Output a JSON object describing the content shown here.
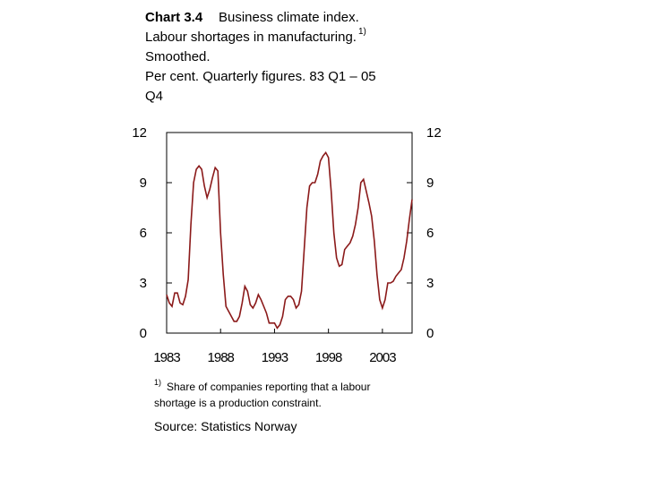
{
  "chart_data": {
    "type": "line",
    "title_bold": "Chart 3.4",
    "title": "Business climate index.",
    "subtitle_lines": [
      "Labour shortages in manufacturing.",
      "Smoothed.",
      "Per cent. Quarterly figures. 83 Q1 – 05",
      "Q4"
    ],
    "title_footnote_mark": "1)",
    "footnote_mark": "1)",
    "footnote_lines": [
      "Share of companies reporting that a labour",
      "shortage is a production constraint."
    ],
    "source": "Source: Statistics Norway",
    "x": [
      1983,
      1983.25,
      1983.5,
      1983.75,
      1984,
      1984.25,
      1984.5,
      1984.75,
      1985,
      1985.25,
      1985.5,
      1985.75,
      1986,
      1986.25,
      1986.5,
      1986.75,
      1987,
      1987.25,
      1987.5,
      1987.75,
      1988,
      1988.25,
      1988.5,
      1988.75,
      1989,
      1989.25,
      1989.5,
      1989.75,
      1990,
      1990.25,
      1990.5,
      1990.75,
      1991,
      1991.25,
      1991.5,
      1991.75,
      1992,
      1992.25,
      1992.5,
      1992.75,
      1993,
      1993.25,
      1993.5,
      1993.75,
      1994,
      1994.25,
      1994.5,
      1994.75,
      1995,
      1995.25,
      1995.5,
      1995.75,
      1996,
      1996.25,
      1996.5,
      1996.75,
      1997,
      1997.25,
      1997.5,
      1997.75,
      1998,
      1998.25,
      1998.5,
      1998.75,
      1999,
      1999.25,
      1999.5,
      1999.75,
      2000,
      2000.25,
      2000.5,
      2000.75,
      2001,
      2001.25,
      2001.5,
      2001.75,
      2002,
      2002.25,
      2002.5,
      2002.75,
      2003,
      2003.25,
      2003.5,
      2003.75,
      2004,
      2004.25,
      2004.5,
      2004.75,
      2005,
      2005.25,
      2005.5,
      2005.75
    ],
    "series": [
      {
        "color": "#8b1a1a",
        "values": [
          2.3,
          1.8,
          1.6,
          2.4,
          2.4,
          1.8,
          1.7,
          2.2,
          3.2,
          6.5,
          9.0,
          9.8,
          10.0,
          9.8,
          8.8,
          8.1,
          8.6,
          9.3,
          9.9,
          9.7,
          6.0,
          3.5,
          1.6,
          1.3,
          1.0,
          0.7,
          0.7,
          1.0,
          1.8,
          2.8,
          2.5,
          1.7,
          1.5,
          1.8,
          2.3,
          2.0,
          1.6,
          1.2,
          0.6,
          0.6,
          0.6,
          0.3,
          0.5,
          1.0,
          2.0,
          2.2,
          2.2,
          2.0,
          1.5,
          1.7,
          2.5,
          5.0,
          7.5,
          8.8,
          9.0,
          9.0,
          9.5,
          10.3,
          10.6,
          10.8,
          10.5,
          8.5,
          6.0,
          4.5,
          4.0,
          4.1,
          5.0,
          5.2,
          5.4,
          5.8,
          6.5,
          7.5,
          9.0,
          9.2,
          8.5,
          7.8,
          7.0,
          5.5,
          3.5,
          2.0,
          1.5,
          2.0,
          3.0,
          3.0,
          3.1,
          3.4,
          3.6,
          3.8,
          4.5,
          5.5,
          6.8,
          8.0
        ]
      }
    ],
    "xlim": [
      1983,
      2005.75
    ],
    "xticks": [
      1983,
      1988,
      1993,
      1998,
      2003
    ],
    "ylim": [
      0,
      12
    ],
    "yticks": [
      0,
      3,
      6,
      9,
      12
    ],
    "y2lim": [
      0,
      12
    ],
    "y2ticks": [
      0,
      3,
      6,
      9,
      12
    ]
  }
}
